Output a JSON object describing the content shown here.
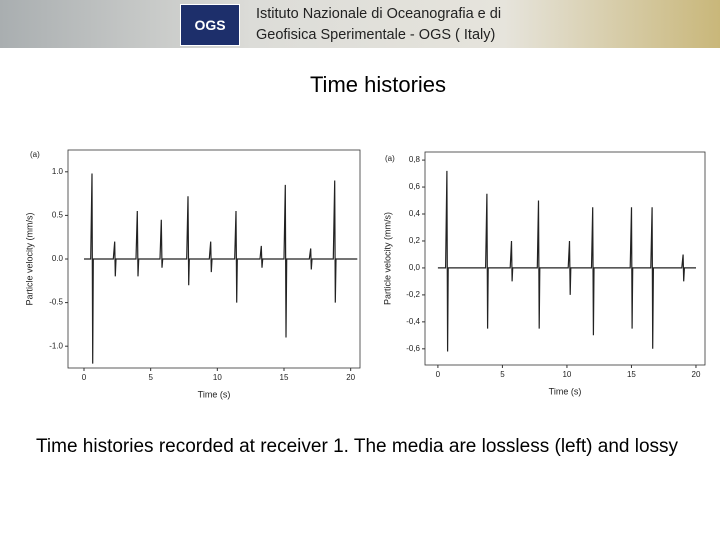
{
  "header": {
    "logo": "OGS",
    "lines": [
      "Istituto Nazionale di Oceanografia e di",
      "Geofisica Sperimentale - OGS ( Italy)"
    ]
  },
  "title": "Time histories",
  "caption": "Time histories recorded at receiver 1. The media are lossless (left) and lossy",
  "chart_data": [
    {
      "type": "line",
      "panel_label": "(a)",
      "xlabel": "Time (s)",
      "ylabel": "Particle velocity (mm/s)",
      "color": "#222222",
      "xlim": [
        -1.2,
        20.7
      ],
      "ylim": [
        -1.25,
        1.25
      ],
      "xticks": [
        0,
        5,
        10,
        15,
        20
      ],
      "yticks": [
        {
          "value": 1,
          "label": "1.0"
        },
        {
          "value": 0.5,
          "label": "0.5"
        },
        {
          "value": 0,
          "label": "0.0"
        },
        {
          "value": -0.5,
          "label": "-0.5"
        },
        {
          "value": -1,
          "label": "-1.0"
        }
      ],
      "x": [
        0,
        0.5,
        0.6,
        0.65,
        0.7,
        2.2,
        2.3,
        2.35,
        2.4,
        3.9,
        4.0,
        4.05,
        4.1,
        5.7,
        5.8,
        5.85,
        5.9,
        7.7,
        7.8,
        7.85,
        7.9,
        9.4,
        9.5,
        9.55,
        9.6,
        11.3,
        11.4,
        11.45,
        11.5,
        13.2,
        13.3,
        13.35,
        13.4,
        15.0,
        15.1,
        15.15,
        15.2,
        16.9,
        17.0,
        17.05,
        17.1,
        18.7,
        18.8,
        18.85,
        18.9,
        20.5
      ],
      "values": [
        0,
        0,
        0.98,
        -1.2,
        0,
        0,
        0.2,
        -0.2,
        0,
        0,
        0.55,
        -0.2,
        0,
        0,
        0.45,
        -0.1,
        0,
        0,
        0.72,
        -0.3,
        0,
        0,
        0.2,
        -0.15,
        0,
        0,
        0.55,
        -0.5,
        0,
        0,
        0.15,
        -0.1,
        0,
        0,
        0.85,
        -0.9,
        0,
        0,
        0.12,
        -0.12,
        0,
        0,
        0.9,
        -0.5,
        0,
        0
      ]
    },
    {
      "type": "line",
      "panel_label": "(a)",
      "xlabel": "Time (s)",
      "ylabel": "Particle velocity (mm/s)",
      "color": "#222222",
      "xlim": [
        -1.0,
        20.7
      ],
      "ylim": [
        -0.72,
        0.86
      ],
      "xticks": [
        0,
        5,
        10,
        15,
        20
      ],
      "yticks": [
        {
          "value": 0.8,
          "label": "0,8"
        },
        {
          "value": 0.6,
          "label": "0,6"
        },
        {
          "value": 0.4,
          "label": "0,4"
        },
        {
          "value": 0.2,
          "label": "0,2"
        },
        {
          "value": 0,
          "label": "0,0"
        },
        {
          "value": -0.2,
          "label": "-0,2"
        },
        {
          "value": -0.4,
          "label": "-0,4"
        },
        {
          "value": -0.6,
          "label": "-0,6"
        }
      ],
      "x": [
        0,
        0.6,
        0.7,
        0.75,
        0.8,
        3.7,
        3.8,
        3.85,
        3.9,
        5.6,
        5.7,
        5.75,
        5.8,
        7.7,
        7.8,
        7.85,
        7.9,
        10.1,
        10.2,
        10.25,
        10.3,
        11.9,
        12.0,
        12.05,
        12.1,
        14.9,
        15.0,
        15.05,
        15.1,
        16.5,
        16.6,
        16.65,
        16.7,
        18.9,
        19.0,
        19.05,
        19.1,
        20
      ],
      "values": [
        0,
        0,
        0.72,
        -0.62,
        0,
        0,
        0.55,
        -0.45,
        0,
        0,
        0.2,
        -0.1,
        0,
        0,
        0.5,
        -0.45,
        0,
        0,
        0.2,
        -0.2,
        0,
        0,
        0.45,
        -0.5,
        0,
        0,
        0.45,
        -0.45,
        0,
        0,
        0.45,
        -0.6,
        0,
        0,
        0.1,
        -0.1,
        0,
        0
      ]
    }
  ]
}
